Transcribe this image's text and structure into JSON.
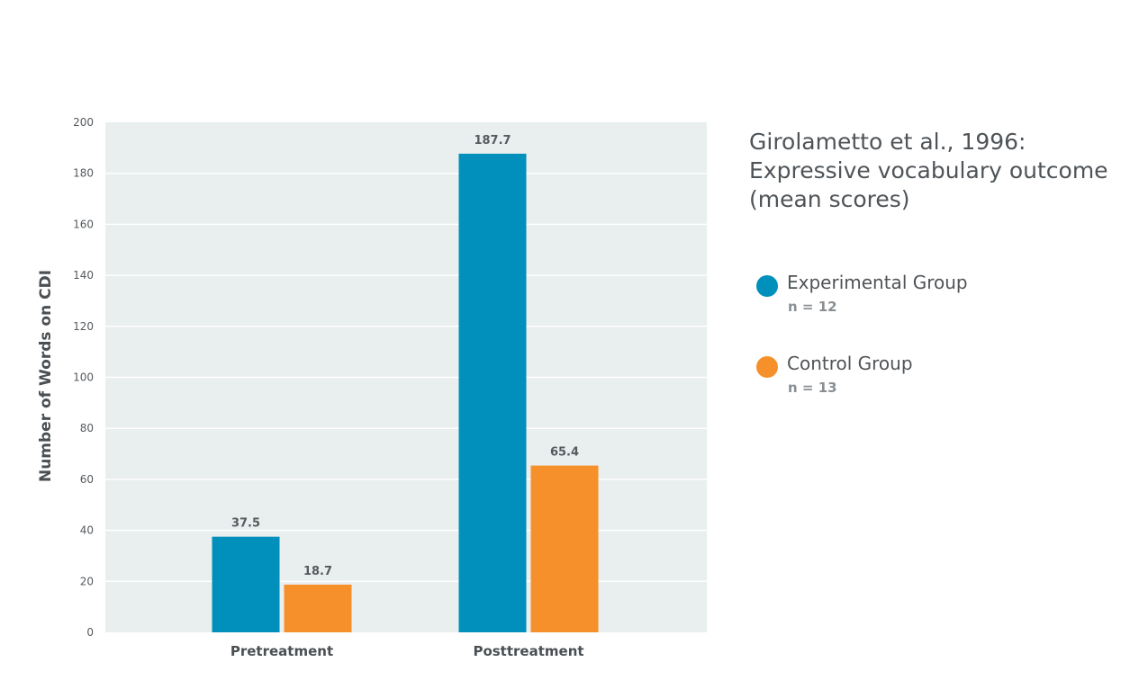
{
  "chart_data": {
    "type": "bar",
    "title_lines": [
      "Girolametto et al., 1996:",
      "Expressive vocabulary outcome",
      "(mean scores)"
    ],
    "xlabel": "",
    "ylabel": "Number of Words on CDI",
    "ylim": [
      0,
      200
    ],
    "yticks": [
      0,
      20,
      40,
      60,
      80,
      100,
      120,
      140,
      160,
      180,
      200
    ],
    "grid": true,
    "legend_position": "right",
    "categories": [
      "Pretreatment",
      "Posttreatment"
    ],
    "series": [
      {
        "name": "Experimental Group",
        "note": "n = 12",
        "color": "#0090bb",
        "values": [
          37.5,
          187.7
        ],
        "value_labels": [
          "37.5",
          "187.7"
        ]
      },
      {
        "name": "Control Group",
        "note": "n = 13",
        "color": "#f5902a",
        "values": [
          18.7,
          65.4
        ],
        "value_labels": [
          "18.7",
          "65.4"
        ]
      }
    ],
    "plot_background": "#e9eeee",
    "grid_color": "#ffffff"
  }
}
